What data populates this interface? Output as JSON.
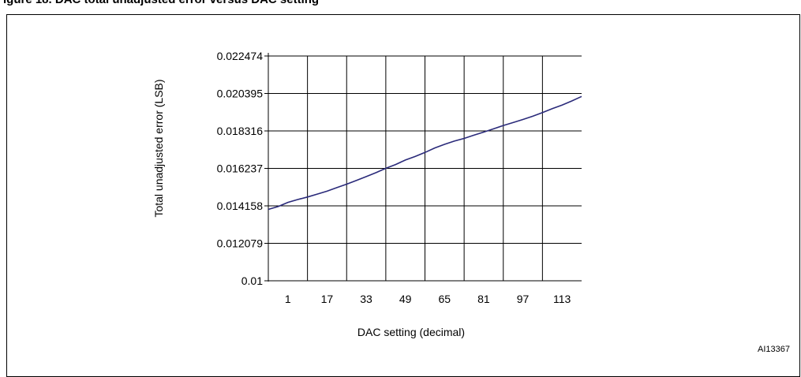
{
  "figure": {
    "title": "igure 18.  DAC total unadjusted error versus DAC setting",
    "reference": "AI13367"
  },
  "chart_data": {
    "type": "line",
    "xlabel": "DAC setting (decimal)",
    "ylabel": "Total unadjusted error (LSB)",
    "ylim": [
      0.01,
      0.022474
    ],
    "y_ticks": [
      "0.01",
      "0.012079",
      "0.014158",
      "0.016237",
      "0.018316",
      "0.020395",
      "0.022474"
    ],
    "x_ticks": [
      "1",
      "17",
      "33",
      "49",
      "65",
      "81",
      "97",
      "113"
    ],
    "xlim": [
      -7,
      121
    ],
    "grid": true,
    "series": [
      {
        "color": "#2a2a7a",
        "x": [
          -7,
          -3,
          1,
          5,
          9,
          13,
          17,
          21,
          25,
          29,
          33,
          37,
          41,
          45,
          49,
          53,
          57,
          61,
          65,
          69,
          73,
          77,
          81,
          85,
          89,
          93,
          97,
          101,
          105,
          109,
          113,
          117,
          121
        ],
        "y": [
          0.01396,
          0.01412,
          0.01435,
          0.01451,
          0.01465,
          0.01481,
          0.01497,
          0.01517,
          0.01536,
          0.01557,
          0.01578,
          0.016,
          0.01624,
          0.01645,
          0.0167,
          0.0169,
          0.01712,
          0.01737,
          0.01757,
          0.01775,
          0.0179,
          0.01808,
          0.01825,
          0.01843,
          0.01862,
          0.01878,
          0.01895,
          0.01913,
          0.01933,
          0.01955,
          0.01975,
          0.01998,
          0.02023
        ]
      }
    ]
  }
}
